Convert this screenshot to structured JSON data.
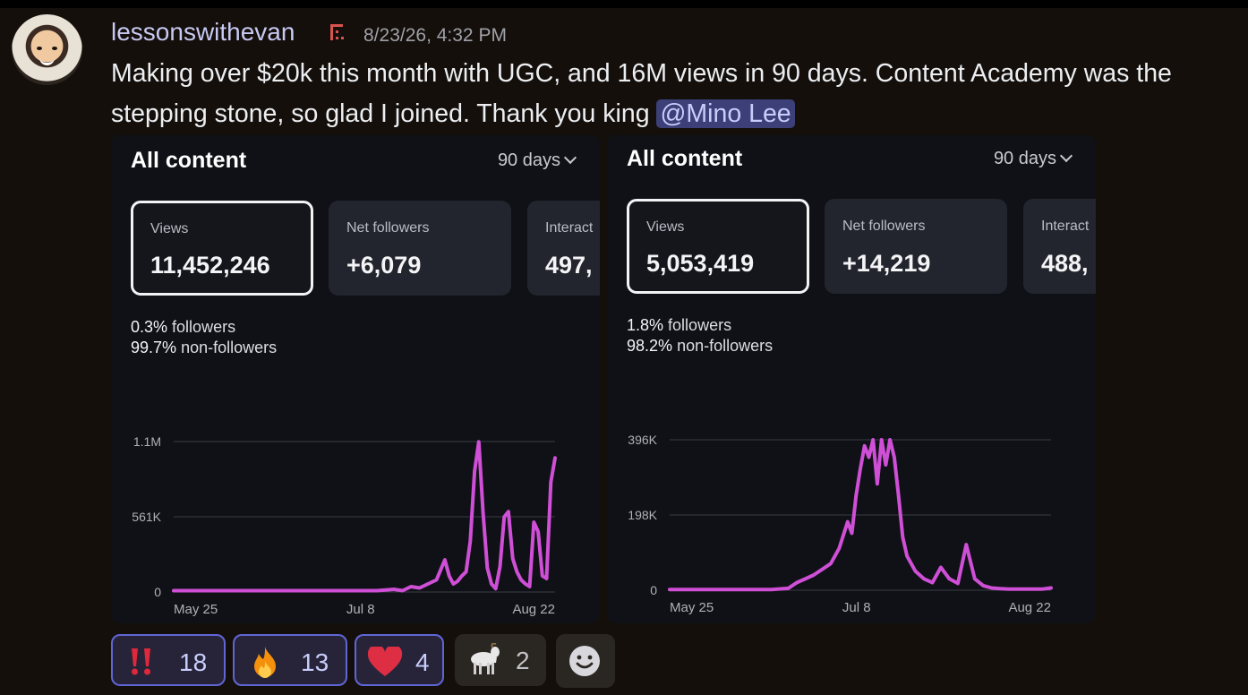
{
  "post": {
    "username": "lessonswithevan",
    "timestamp": "8/23/26, 4:32 PM",
    "message_text": "Making over $20k this month with UGC, and 16M views in 90 days. Content Academy was the stepping stone, so glad I joined. Thank you king",
    "mention": "@Mino Lee"
  },
  "cards": [
    {
      "title": "All content",
      "range": "90 days",
      "stats": [
        {
          "label": "Views",
          "value": "11,452,246"
        },
        {
          "label": "Net followers",
          "value": "+6,079"
        },
        {
          "label": "Interact",
          "value": "497,"
        }
      ],
      "audience": {
        "followers_pct": "0.3%",
        "followers_label": "followers",
        "nonfollowers_pct": "99.7%",
        "nonfollowers_label": "non-followers"
      }
    },
    {
      "title": "All content",
      "range": "90 days",
      "stats": [
        {
          "label": "Views",
          "value": "5,053,419"
        },
        {
          "label": "Net followers",
          "value": "+14,219"
        },
        {
          "label": "Interact",
          "value": "488,"
        }
      ],
      "audience": {
        "followers_pct": "1.8%",
        "followers_label": "followers",
        "nonfollowers_pct": "98.2%",
        "nonfollowers_label": "non-followers"
      }
    }
  ],
  "chart_data": [
    {
      "type": "line",
      "title": "",
      "xlabel": "",
      "ylabel": "",
      "x_ticks": [
        "May 25",
        "Jul 8",
        "Aug 22"
      ],
      "y_ticks": [
        "0",
        "561K",
        "1.1M"
      ],
      "y_tick_values": [
        0,
        561000,
        1122000
      ],
      "ylim": [
        0,
        1122000
      ],
      "grid": true,
      "color": "#cf4fd6",
      "days": [
        0,
        4,
        8,
        12,
        16,
        20,
        24,
        28,
        32,
        36,
        40,
        44,
        48,
        52,
        54,
        56,
        58,
        60,
        62,
        64,
        65,
        66,
        67,
        68,
        69,
        70,
        71,
        72,
        73,
        74,
        75,
        76,
        77,
        78,
        79,
        80,
        81,
        82,
        83,
        84,
        85,
        86,
        87,
        88,
        89,
        90
      ],
      "values": [
        10000,
        10000,
        10000,
        10000,
        10000,
        10000,
        10000,
        10000,
        10000,
        10000,
        10000,
        10000,
        10000,
        20000,
        10000,
        40000,
        30000,
        60000,
        90000,
        240000,
        120000,
        60000,
        80000,
        120000,
        150000,
        380000,
        900000,
        1120000,
        600000,
        180000,
        60000,
        25000,
        190000,
        560000,
        600000,
        250000,
        150000,
        90000,
        60000,
        40000,
        520000,
        450000,
        120000,
        100000,
        820000,
        1000000
      ]
    },
    {
      "type": "line",
      "title": "",
      "xlabel": "",
      "ylabel": "",
      "x_ticks": [
        "May 25",
        "Jul 8",
        "Aug 22"
      ],
      "y_ticks": [
        "0",
        "198K",
        "396K"
      ],
      "y_tick_values": [
        0,
        198000,
        396000
      ],
      "ylim": [
        0,
        396000
      ],
      "grid": true,
      "color": "#cf4fd6",
      "days": [
        0,
        4,
        8,
        12,
        16,
        20,
        24,
        28,
        30,
        32,
        34,
        36,
        38,
        40,
        42,
        43,
        44,
        45,
        46,
        47,
        48,
        49,
        50,
        51,
        52,
        53,
        54,
        55,
        56,
        58,
        60,
        62,
        64,
        66,
        68,
        70,
        72,
        74,
        76,
        78,
        80,
        82,
        84,
        86,
        88,
        90
      ],
      "values": [
        2000,
        2000,
        2000,
        2000,
        2000,
        2000,
        2000,
        5000,
        20000,
        30000,
        40000,
        55000,
        70000,
        110000,
        180000,
        150000,
        250000,
        320000,
        380000,
        350000,
        396000,
        280000,
        396000,
        330000,
        396000,
        350000,
        250000,
        140000,
        90000,
        50000,
        30000,
        20000,
        60000,
        30000,
        18000,
        120000,
        30000,
        12000,
        6000,
        4000,
        3000,
        3000,
        3000,
        3000,
        3000,
        6000
      ]
    }
  ],
  "reactions": [
    {
      "emoji": "‼️",
      "name": "double-exclamation-icon",
      "count": "18",
      "reacted": true
    },
    {
      "emoji": "🔥",
      "name": "fire-icon",
      "count": "13",
      "reacted": true
    },
    {
      "emoji": "❤️",
      "name": "heart-icon",
      "count": "4",
      "reacted": true
    },
    {
      "emoji": "🐐",
      "name": "goat-icon",
      "count": "2",
      "reacted": false
    }
  ]
}
